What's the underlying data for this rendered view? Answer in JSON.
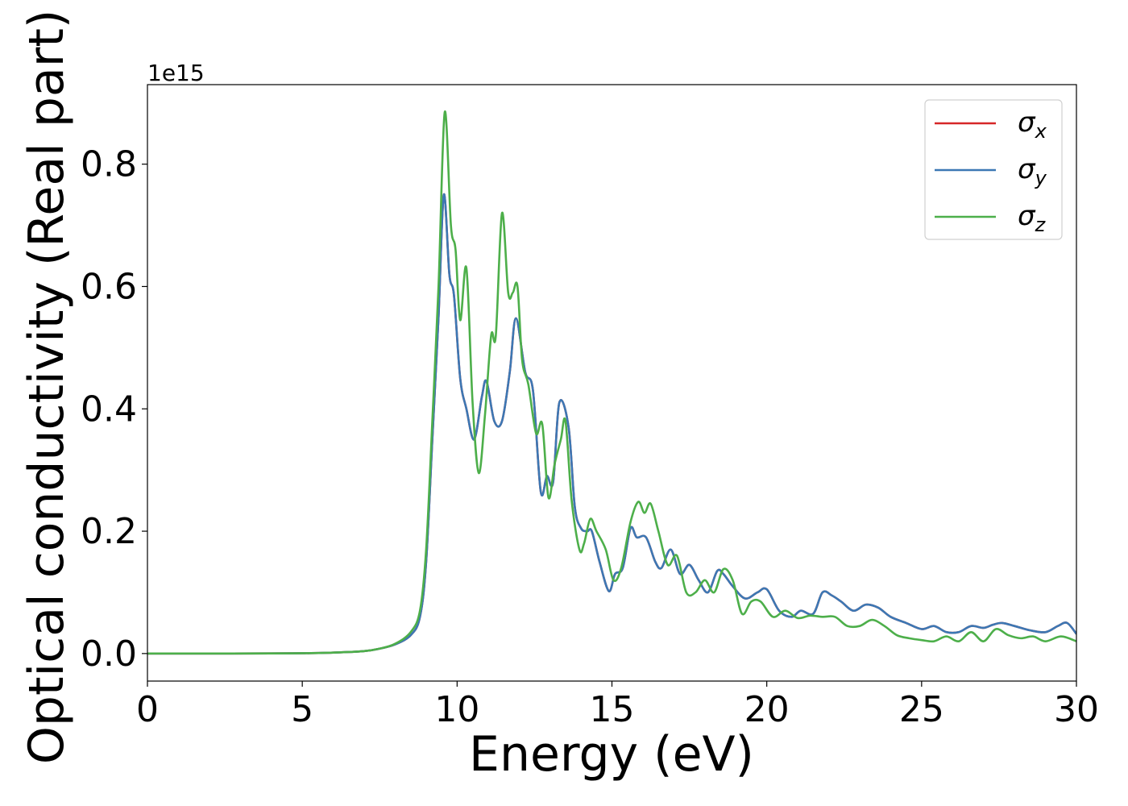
{
  "chart_data": {
    "type": "line",
    "xlabel": "Energy (eV)",
    "ylabel": "Optical conductivity (Real part)",
    "y_offset_label": "1e15",
    "xlim": [
      0,
      30
    ],
    "ylim": [
      -0.045,
      0.93
    ],
    "x_ticks": [
      0,
      5,
      10,
      15,
      20,
      25,
      30
    ],
    "x_tick_labels": [
      "0",
      "5",
      "10",
      "15",
      "20",
      "25",
      "30"
    ],
    "y_ticks": [
      0.0,
      0.2,
      0.4,
      0.6,
      0.8
    ],
    "y_tick_labels": [
      "0.0",
      "0.2",
      "0.4",
      "0.6",
      "0.8"
    ],
    "grid": false,
    "legend_position": "top-right",
    "series": [
      {
        "name": "σx",
        "legend_base": "σ",
        "legend_sub": "x",
        "color": "#d62728",
        "x": [
          0,
          2,
          4,
          5,
          6,
          7,
          7.5,
          8,
          8.5,
          8.8,
          9.0,
          9.2,
          9.4,
          9.57,
          9.75,
          9.9,
          10.1,
          10.3,
          10.55,
          10.8,
          10.95,
          11.2,
          11.45,
          11.7,
          11.9,
          12.2,
          12.45,
          12.7,
          12.9,
          13.1,
          13.3,
          13.6,
          13.8,
          14.0,
          14.2,
          14.35,
          14.6,
          14.9,
          15.1,
          15.35,
          15.6,
          15.8,
          16.1,
          16.4,
          16.6,
          16.9,
          17.2,
          17.5,
          17.8,
          18.1,
          18.4,
          18.6,
          18.9,
          19.3,
          19.7,
          20.0,
          20.4,
          20.8,
          21.1,
          21.5,
          21.8,
          22.1,
          22.4,
          22.8,
          23.2,
          23.6,
          24.0,
          24.5,
          25.0,
          25.4,
          25.8,
          26.2,
          26.6,
          27.0,
          27.3,
          27.6,
          28.0,
          28.5,
          29.0,
          29.4,
          29.7,
          30.0
        ],
        "y": [
          0.0,
          0.0,
          0.0002,
          0.0005,
          0.0015,
          0.004,
          0.008,
          0.015,
          0.03,
          0.06,
          0.15,
          0.35,
          0.55,
          0.75,
          0.62,
          0.585,
          0.45,
          0.4,
          0.35,
          0.42,
          0.445,
          0.38,
          0.38,
          0.46,
          0.548,
          0.46,
          0.43,
          0.265,
          0.29,
          0.28,
          0.41,
          0.37,
          0.24,
          0.205,
          0.2,
          0.2,
          0.15,
          0.102,
          0.13,
          0.14,
          0.205,
          0.19,
          0.19,
          0.15,
          0.14,
          0.17,
          0.13,
          0.145,
          0.12,
          0.1,
          0.135,
          0.13,
          0.11,
          0.09,
          0.1,
          0.105,
          0.07,
          0.06,
          0.07,
          0.065,
          0.1,
          0.095,
          0.085,
          0.07,
          0.08,
          0.075,
          0.06,
          0.05,
          0.04,
          0.045,
          0.035,
          0.035,
          0.045,
          0.042,
          0.047,
          0.05,
          0.045,
          0.038,
          0.035,
          0.045,
          0.05,
          0.032
        ]
      },
      {
        "name": "σy",
        "legend_base": "σ",
        "legend_sub": "y",
        "color": "#3c78b4",
        "x": [
          0,
          2,
          4,
          5,
          6,
          7,
          7.5,
          8,
          8.5,
          8.8,
          9.0,
          9.2,
          9.4,
          9.57,
          9.75,
          9.9,
          10.1,
          10.3,
          10.55,
          10.8,
          10.95,
          11.2,
          11.45,
          11.7,
          11.9,
          12.2,
          12.45,
          12.7,
          12.9,
          13.1,
          13.3,
          13.6,
          13.8,
          14.0,
          14.2,
          14.35,
          14.6,
          14.9,
          15.1,
          15.35,
          15.6,
          15.8,
          16.1,
          16.4,
          16.6,
          16.9,
          17.2,
          17.5,
          17.8,
          18.1,
          18.4,
          18.6,
          18.9,
          19.3,
          19.7,
          20.0,
          20.4,
          20.8,
          21.1,
          21.5,
          21.8,
          22.1,
          22.4,
          22.8,
          23.2,
          23.6,
          24.0,
          24.5,
          25.0,
          25.4,
          25.8,
          26.2,
          26.6,
          27.0,
          27.3,
          27.6,
          28.0,
          28.5,
          29.0,
          29.4,
          29.7,
          30.0
        ],
        "y": [
          0.0,
          0.0,
          0.0002,
          0.0005,
          0.0015,
          0.004,
          0.008,
          0.015,
          0.03,
          0.06,
          0.15,
          0.35,
          0.55,
          0.75,
          0.62,
          0.585,
          0.45,
          0.4,
          0.35,
          0.42,
          0.445,
          0.38,
          0.38,
          0.46,
          0.548,
          0.46,
          0.43,
          0.265,
          0.29,
          0.28,
          0.41,
          0.37,
          0.24,
          0.205,
          0.2,
          0.2,
          0.15,
          0.102,
          0.13,
          0.14,
          0.205,
          0.19,
          0.19,
          0.15,
          0.14,
          0.17,
          0.13,
          0.145,
          0.12,
          0.1,
          0.135,
          0.13,
          0.11,
          0.09,
          0.1,
          0.105,
          0.07,
          0.06,
          0.07,
          0.065,
          0.1,
          0.095,
          0.085,
          0.07,
          0.08,
          0.075,
          0.06,
          0.05,
          0.04,
          0.045,
          0.035,
          0.035,
          0.045,
          0.042,
          0.047,
          0.05,
          0.045,
          0.038,
          0.035,
          0.045,
          0.05,
          0.032
        ]
      },
      {
        "name": "σz",
        "legend_base": "σ",
        "legend_sub": "z",
        "color": "#4daf4a",
        "x": [
          0,
          2,
          4,
          5,
          6,
          7,
          7.5,
          8,
          8.5,
          8.8,
          9.0,
          9.2,
          9.4,
          9.6,
          9.8,
          9.95,
          10.1,
          10.3,
          10.5,
          10.7,
          10.9,
          11.1,
          11.25,
          11.45,
          11.65,
          11.8,
          11.95,
          12.1,
          12.3,
          12.55,
          12.75,
          12.95,
          13.15,
          13.35,
          13.5,
          13.7,
          13.95,
          14.1,
          14.3,
          14.5,
          14.8,
          15.05,
          15.3,
          15.6,
          15.85,
          16.05,
          16.25,
          16.5,
          16.8,
          17.1,
          17.4,
          17.7,
          18.0,
          18.3,
          18.6,
          18.9,
          19.2,
          19.5,
          19.8,
          20.2,
          20.6,
          21.0,
          21.4,
          21.8,
          22.2,
          22.6,
          23.0,
          23.4,
          23.8,
          24.2,
          24.6,
          25.0,
          25.4,
          25.8,
          26.2,
          26.6,
          27.0,
          27.4,
          27.8,
          28.2,
          28.6,
          29.0,
          29.5,
          30.0
        ],
        "y": [
          0.0,
          0.0,
          0.0002,
          0.0005,
          0.0015,
          0.004,
          0.008,
          0.016,
          0.035,
          0.07,
          0.17,
          0.38,
          0.6,
          0.885,
          0.7,
          0.66,
          0.545,
          0.63,
          0.41,
          0.295,
          0.39,
          0.52,
          0.52,
          0.72,
          0.59,
          0.59,
          0.6,
          0.48,
          0.44,
          0.36,
          0.375,
          0.255,
          0.31,
          0.35,
          0.38,
          0.25,
          0.17,
          0.18,
          0.22,
          0.2,
          0.17,
          0.12,
          0.14,
          0.215,
          0.248,
          0.23,
          0.245,
          0.2,
          0.145,
          0.16,
          0.1,
          0.1,
          0.12,
          0.1,
          0.138,
          0.12,
          0.065,
          0.085,
          0.085,
          0.06,
          0.07,
          0.058,
          0.062,
          0.06,
          0.06,
          0.045,
          0.045,
          0.055,
          0.045,
          0.03,
          0.025,
          0.022,
          0.02,
          0.028,
          0.02,
          0.035,
          0.02,
          0.04,
          0.03,
          0.025,
          0.028,
          0.02,
          0.028,
          0.02
        ]
      }
    ]
  }
}
